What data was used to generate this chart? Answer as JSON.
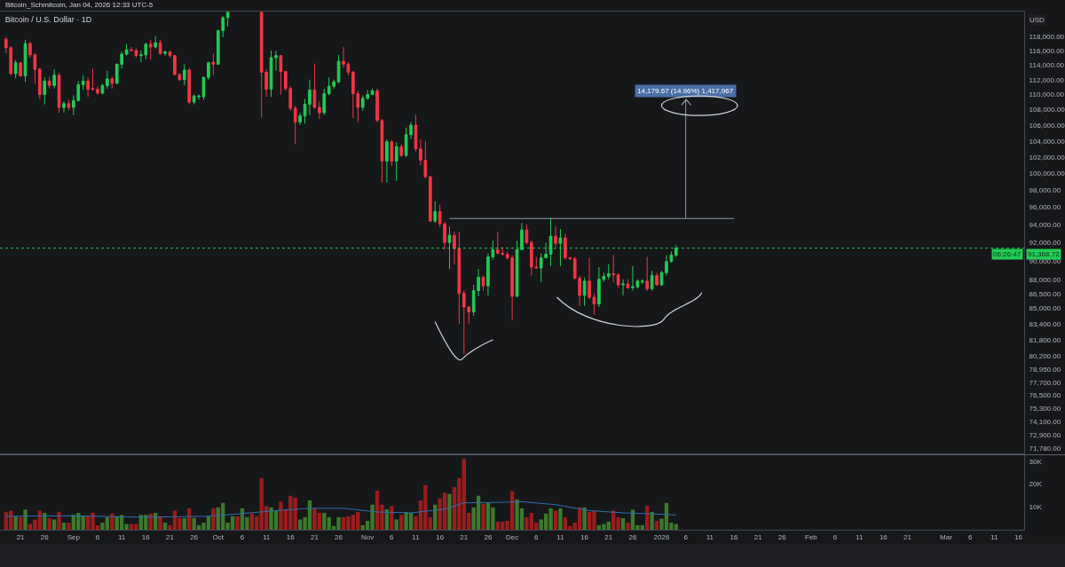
{
  "chart_data": [
    {
      "type": "candlestick",
      "title": "Bitcoin / U.S. Dollar · 1D",
      "ylabel": "USD",
      "log": "y",
      "tick_labels": "y",
      "annotations": [
        "Bitcoin_Schmitcoin, Jan 04, 2026 12:33 UTC-5",
        "06:26:47",
        {
          "text": "14,179.67 (14.96%) 1,417,967",
          "x": "2026-01-06",
          "y": 109400
        }
      ],
      "x": [
        "2025-08-18",
        "2025-08-19",
        "2025-08-20",
        "2025-08-21",
        "2025-08-22",
        "2025-08-23",
        "2025-08-24",
        "2025-08-25",
        "2025-08-26",
        "2025-08-27",
        "2025-08-28",
        "2025-08-29",
        "2025-08-30",
        "2025-08-31",
        "2025-09-01",
        "2025-09-02",
        "2025-09-03",
        "2025-09-04",
        "2025-09-05",
        "2025-09-06",
        "2025-09-07",
        "2025-09-08",
        "2025-09-09",
        "2025-09-10",
        "2025-09-11",
        "2025-09-12",
        "2025-09-13",
        "2025-09-14",
        "2025-09-15",
        "2025-09-16",
        "2025-09-17",
        "2025-09-18",
        "2025-09-19",
        "2025-09-20",
        "2025-09-21",
        "2025-09-22",
        "2025-09-23",
        "2025-09-24",
        "2025-09-25",
        "2025-09-26",
        "2025-09-27",
        "2025-09-28",
        "2025-09-29",
        "2025-09-30",
        "2025-10-01",
        "2025-10-02",
        "2025-10-03",
        "2025-10-10",
        "2025-10-11",
        "2025-10-12",
        "2025-10-13",
        "2025-10-14",
        "2025-10-15",
        "2025-10-16",
        "2025-10-17",
        "2025-10-18",
        "2025-10-19",
        "2025-10-20",
        "2025-10-21",
        "2025-10-22",
        "2025-10-23",
        "2025-10-24",
        "2025-10-25",
        "2025-10-26",
        "2025-10-27",
        "2025-10-28",
        "2025-10-29",
        "2025-10-30",
        "2025-10-31",
        "2025-11-01",
        "2025-11-02",
        "2025-11-03",
        "2025-11-04",
        "2025-11-05",
        "2025-11-06",
        "2025-11-07",
        "2025-11-08",
        "2025-11-09",
        "2025-11-10",
        "2025-11-11",
        "2025-11-12",
        "2025-11-13",
        "2025-11-14",
        "2025-11-15",
        "2025-11-16",
        "2025-11-17",
        "2025-11-18",
        "2025-11-19",
        "2025-11-20",
        "2025-11-21",
        "2025-11-22",
        "2025-11-23",
        "2025-11-24",
        "2025-11-25",
        "2025-11-26",
        "2025-11-27",
        "2025-11-28",
        "2025-11-29",
        "2025-11-30",
        "2025-12-01",
        "2025-12-02",
        "2025-12-03",
        "2025-12-04",
        "2025-12-05",
        "2025-12-06",
        "2025-12-07",
        "2025-12-08",
        "2025-12-09",
        "2025-12-10",
        "2025-12-11",
        "2025-12-12",
        "2025-12-13",
        "2025-12-14",
        "2025-12-15",
        "2025-12-16",
        "2025-12-17",
        "2025-12-18",
        "2025-12-19",
        "2025-12-20",
        "2025-12-21",
        "2025-12-22",
        "2025-12-23",
        "2025-12-24",
        "2025-12-25",
        "2025-12-26",
        "2025-12-27",
        "2025-12-28",
        "2025-12-29",
        "2025-12-30",
        "2025-12-31",
        "2026-01-01",
        "2026-01-02",
        "2026-01-03",
        "2026-01-04"
      ],
      "ohlc": [
        [
          117600,
          117900,
          115600,
          116400
        ],
        [
          116400,
          116600,
          112600,
          112800
        ],
        [
          112800,
          114700,
          112200,
          114300
        ],
        [
          114300,
          114400,
          112400,
          112500
        ],
        [
          112500,
          117500,
          111700,
          117000
        ],
        [
          117000,
          117300,
          115000,
          115400
        ],
        [
          115400,
          115600,
          111400,
          113400
        ],
        [
          113400,
          113600,
          109400,
          110000
        ],
        [
          110000,
          112300,
          108700,
          111800
        ],
        [
          111800,
          112400,
          110800,
          111200
        ],
        [
          111200,
          113400,
          110800,
          112600
        ],
        [
          112600,
          112900,
          107600,
          108300
        ],
        [
          108300,
          109100,
          107600,
          108800
        ],
        [
          108800,
          109300,
          107900,
          108300
        ],
        [
          108300,
          109900,
          107300,
          109200
        ],
        [
          109200,
          111800,
          109100,
          111300
        ],
        [
          111300,
          112600,
          110600,
          111800
        ],
        [
          111800,
          112300,
          109700,
          110700
        ],
        [
          110800,
          113500,
          110500,
          110700
        ],
        [
          110700,
          111100,
          110000,
          110200
        ],
        [
          110200,
          111400,
          110000,
          111200
        ],
        [
          111200,
          113200,
          110800,
          112100
        ],
        [
          112100,
          112400,
          110800,
          111500
        ],
        [
          111500,
          114200,
          111400,
          114100
        ],
        [
          114100,
          115900,
          113500,
          115500
        ],
        [
          115500,
          116900,
          115300,
          116100
        ],
        [
          116100,
          116500,
          115900,
          116000
        ],
        [
          116000,
          116300,
          115000,
          115300
        ],
        [
          115300,
          116000,
          114400,
          115400
        ],
        [
          115400,
          117100,
          114800,
          116900
        ],
        [
          116900,
          117500,
          114700,
          116500
        ],
        [
          116500,
          118000,
          116300,
          117100
        ],
        [
          117100,
          117500,
          115400,
          115600
        ],
        [
          115600,
          116000,
          115300,
          115800
        ],
        [
          115800,
          116000,
          115000,
          115300
        ],
        [
          115300,
          115400,
          112600,
          112700
        ],
        [
          112700,
          112900,
          111800,
          112000
        ],
        [
          112000,
          114100,
          111200,
          113300
        ],
        [
          113300,
          113600,
          108700,
          109000
        ],
        [
          109000,
          110000,
          108700,
          109800
        ],
        [
          109700,
          110000,
          109300,
          109800
        ],
        [
          109700,
          112400,
          109300,
          112300
        ],
        [
          112300,
          114500,
          112000,
          114300
        ],
        [
          114400,
          115600,
          112600,
          114100
        ],
        [
          114100,
          119000,
          114000,
          118800
        ],
        [
          118800,
          120900,
          117900,
          120700
        ],
        [
          120700,
          121560,
          119400,
          121500
        ],
        [
          121500,
          121560,
          107000,
          113000
        ],
        [
          113000,
          113400,
          109700,
          110700
        ],
        [
          110700,
          116000,
          109700,
          115000
        ],
        [
          115000,
          116000,
          113200,
          115300
        ],
        [
          115300,
          115400,
          110000,
          113100
        ],
        [
          113100,
          113200,
          110500,
          110800
        ],
        [
          110800,
          111100,
          107900,
          108200
        ],
        [
          108200,
          108500,
          103600,
          106400
        ],
        [
          106400,
          107600,
          106000,
          107200
        ],
        [
          107200,
          109400,
          106200,
          108700
        ],
        [
          108700,
          112000,
          107300,
          110600
        ],
        [
          110600,
          114200,
          108100,
          108300
        ],
        [
          108300,
          109100,
          106800,
          107600
        ],
        [
          107600,
          110800,
          107300,
          110100
        ],
        [
          110100,
          112300,
          109900,
          111100
        ],
        [
          111100,
          112000,
          110800,
          111700
        ],
        [
          111700,
          115400,
          111500,
          114500
        ],
        [
          114500,
          116500,
          113600,
          114100
        ],
        [
          114100,
          114400,
          112600,
          113000
        ],
        [
          113000,
          113200,
          106900,
          110100
        ],
        [
          110100,
          110500,
          106400,
          108300
        ],
        [
          108300,
          109900,
          107900,
          109500
        ],
        [
          109500,
          110600,
          109300,
          110000
        ],
        [
          110000,
          110800,
          109900,
          110500
        ],
        [
          110500,
          110800,
          106400,
          106600
        ],
        [
          106600,
          106800,
          98900,
          101500
        ],
        [
          101500,
          104200,
          98900,
          103900
        ],
        [
          103900,
          104100,
          100900,
          101500
        ],
        [
          101500,
          103800,
          99100,
          103300
        ],
        [
          103300,
          103600,
          102000,
          102200
        ],
        [
          102200,
          105700,
          102000,
          104800
        ],
        [
          104800,
          106400,
          104200,
          106000
        ],
        [
          106000,
          107300,
          102700,
          103000
        ],
        [
          103000,
          104200,
          101000,
          101600
        ],
        [
          101600,
          104000,
          99400,
          99600
        ],
        [
          99600,
          99700,
          94300,
          94400
        ],
        [
          94400,
          96700,
          94200,
          95500
        ],
        [
          95500,
          96300,
          93700,
          94100
        ],
        [
          94100,
          94300,
          91200,
          92000
        ],
        [
          92000,
          93800,
          89100,
          92800
        ],
        [
          92800,
          93200,
          89600,
          91300
        ],
        [
          91300,
          93200,
          83400,
          86500
        ],
        [
          86500,
          86800,
          80400,
          85100
        ],
        [
          85100,
          85200,
          83400,
          84600
        ],
        [
          84600,
          87400,
          84200,
          86800
        ],
        [
          86800,
          89100,
          86200,
          88200
        ],
        [
          88200,
          88400,
          86800,
          87300
        ],
        [
          87300,
          90800,
          86300,
          90400
        ],
        [
          90400,
          92200,
          90100,
          91200
        ],
        [
          91200,
          93200,
          90700,
          90800
        ],
        [
          90800,
          91500,
          90600,
          90700
        ],
        [
          90700,
          91000,
          90100,
          90300
        ],
        [
          90300,
          90600,
          83800,
          86200
        ],
        [
          86200,
          92200,
          86100,
          91200
        ],
        [
          91200,
          94200,
          91200,
          93400
        ],
        [
          93400,
          94000,
          91800,
          92000
        ],
        [
          92000,
          92200,
          88400,
          89300
        ],
        [
          89300,
          90400,
          89100,
          89200
        ],
        [
          89200,
          90800,
          87700,
          90300
        ],
        [
          90300,
          92000,
          90300,
          90700
        ],
        [
          90700,
          94800,
          89400,
          92700
        ],
        [
          92700,
          93800,
          91500,
          91900
        ],
        [
          91900,
          93500,
          89400,
          92500
        ],
        [
          92500,
          93000,
          90100,
          90300
        ],
        [
          90300,
          90400,
          90100,
          90200
        ],
        [
          90200,
          90400,
          88000,
          88100
        ],
        [
          88100,
          88400,
          85200,
          86300
        ],
        [
          86300,
          88200,
          85200,
          87800
        ],
        [
          87800,
          90300,
          85900,
          86100
        ],
        [
          86100,
          86500,
          84300,
          85400
        ],
        [
          85400,
          89300,
          85100,
          88000
        ],
        [
          88000,
          88700,
          87700,
          88300
        ],
        [
          88300,
          89600,
          88000,
          88600
        ],
        [
          88600,
          90600,
          87700,
          88500
        ],
        [
          88500,
          88600,
          87100,
          87400
        ],
        [
          87400,
          88000,
          86300,
          87500
        ],
        [
          87500,
          88000,
          87000,
          87100
        ],
        [
          87100,
          89400,
          86800,
          87200
        ],
        [
          87200,
          88000,
          87000,
          87800
        ],
        [
          87700,
          88000,
          87500,
          87800
        ],
        [
          87800,
          90400,
          86800,
          87000
        ],
        [
          87000,
          88900,
          86800,
          88400
        ],
        [
          88400,
          88700,
          87300,
          87400
        ],
        [
          87400,
          88900,
          87300,
          88700
        ],
        [
          88700,
          90600,
          88400,
          89900
        ],
        [
          89900,
          91000,
          89800,
          90600
        ],
        [
          90600,
          91700,
          90400,
          91368.72
        ]
      ],
      "colors": [
        "#f23645",
        "#f23645",
        "#22cc55",
        "#f23645",
        "#22cc55",
        "#f23645",
        "#f23645",
        "#f23645",
        "#22cc55",
        "#f23645",
        "#22cc55",
        "#f23645",
        "#22cc55",
        "#f23645",
        "#22cc55",
        "#22cc55",
        "#22cc55",
        "#f23645",
        "#f23645",
        "#f23645",
        "#22cc55",
        "#22cc55",
        "#f23645",
        "#22cc55",
        "#22cc55",
        "#22cc55",
        "#f23645",
        "#f23645",
        "#22cc55",
        "#22cc55",
        "#f23645",
        "#22cc55",
        "#f23645",
        "#22cc55",
        "#f23645",
        "#f23645",
        "#f23645",
        "#22cc55",
        "#f23645",
        "#22cc55",
        "#22cc55",
        "#22cc55",
        "#22cc55",
        "#f23645",
        "#22cc55",
        "#22cc55",
        "#22cc55",
        "#f23645",
        "#f23645",
        "#22cc55",
        "#22cc55",
        "#f23645",
        "#f23645",
        "#f23645",
        "#f23645",
        "#22cc55",
        "#22cc55",
        "#22cc55",
        "#f23645",
        "#f23645",
        "#22cc55",
        "#22cc55",
        "#22cc55",
        "#22cc55",
        "#f23645",
        "#f23645",
        "#f23645",
        "#f23645",
        "#22cc55",
        "#22cc55",
        "#22cc55",
        "#f23645",
        "#f23645",
        "#22cc55",
        "#f23645",
        "#22cc55",
        "#f23645",
        "#22cc55",
        "#22cc55",
        "#f23645",
        "#f23645",
        "#f23645",
        "#f23645",
        "#22cc55",
        "#f23645",
        "#f23645",
        "#22cc55",
        "#f23645",
        "#f23645",
        "#f23645",
        "#f23645",
        "#22cc55",
        "#22cc55",
        "#f23645",
        "#22cc55",
        "#22cc55",
        "#f23645",
        "#f23645",
        "#f23645",
        "#f23645",
        "#22cc55",
        "#22cc55",
        "#f23645",
        "#f23645",
        "#f23645",
        "#22cc55",
        "#22cc55",
        "#22cc55",
        "#f23645",
        "#22cc55",
        "#f23645",
        "#f23645",
        "#f23645",
        "#f23645",
        "#22cc55",
        "#f23645",
        "#f23645",
        "#22cc55",
        "#22cc55",
        "#22cc55",
        "#f23645",
        "#f23645",
        "#22cc55",
        "#f23645",
        "#22cc55",
        "#22cc55",
        "#22cc55",
        "#f23645",
        "#22cc55",
        "#f23645",
        "#22cc55",
        "#22cc55",
        "#22cc55",
        "#22cc55"
      ],
      "series": [
        {
          "type": "line",
          "color": "#9598a1",
          "x": [
            "2025-11-18",
            "2026-01-16"
          ],
          "values": [
            94700,
            94700
          ]
        },
        {
          "type": "line",
          "color": "#9598a1",
          "x": [
            "2026-01-06",
            "2026-01-06"
          ],
          "values": [
            94700,
            109400
          ]
        }
      ],
      "ref_lines": [
        {
          "axis": "y",
          "value": 91368.72,
          "label": "91,368.72",
          "color": "#22cc55",
          "line_style": "dotted"
        }
      ],
      "xlim": [
        "2025-08-16T18:00",
        "2026-03-17T05:00"
      ],
      "ylim": [
        71300,
        121600
      ],
      "yticks": [
        {
          "value": 118000,
          "label": "118,000.00"
        },
        {
          "value": 116000,
          "label": "116,000.00"
        },
        {
          "value": 114000,
          "label": "114,000.00"
        },
        {
          "value": 112000,
          "label": "112,000.00"
        },
        {
          "value": 110000,
          "label": "110,000.00"
        },
        {
          "value": 108000,
          "label": "108,000.00"
        },
        {
          "value": 106000,
          "label": "106,000.00"
        },
        {
          "value": 104000,
          "label": "104,000.00"
        },
        {
          "value": 102000,
          "label": "102,000.00"
        },
        {
          "value": 100000,
          "label": "100,000.00"
        },
        {
          "value": 98000,
          "label": "98,000.00"
        },
        {
          "value": 96000,
          "label": "96,000.00"
        },
        {
          "value": 94000,
          "label": "94,000.00"
        },
        {
          "value": 92000,
          "label": "92,000.00"
        },
        {
          "value": 90000,
          "label": "90,000.00"
        },
        {
          "value": 88000,
          "label": "88,000.00"
        },
        {
          "value": 86500,
          "label": "86,500.00"
        },
        {
          "value": 85000,
          "label": "85,000.00"
        },
        {
          "value": 83400,
          "label": "83,400.00"
        },
        {
          "value": 81800,
          "label": "81,800.00"
        },
        {
          "value": 80200,
          "label": "80,200.00"
        },
        {
          "value": 78950,
          "label": "78,950.00"
        },
        {
          "value": 77700,
          "label": "77,700.00"
        },
        {
          "value": 76500,
          "label": "76,500.00"
        },
        {
          "value": 75300,
          "label": "75,300.00"
        },
        {
          "value": 74100,
          "label": "74,100.00"
        },
        {
          "value": 72900,
          "label": "72,900.00"
        },
        {
          "value": 71780,
          "label": "71,780.00"
        }
      ]
    },
    {
      "type": "bar",
      "x": [
        "2025-08-18",
        "2025-08-19",
        "2025-08-20",
        "2025-08-21",
        "2025-08-22",
        "2025-08-23",
        "2025-08-24",
        "2025-08-25",
        "2025-08-26",
        "2025-08-27",
        "2025-08-28",
        "2025-08-29",
        "2025-08-30",
        "2025-08-31",
        "2025-09-01",
        "2025-09-02",
        "2025-09-03",
        "2025-09-04",
        "2025-09-05",
        "2025-09-06",
        "2025-09-07",
        "2025-09-08",
        "2025-09-09",
        "2025-09-10",
        "2025-09-11",
        "2025-09-12",
        "2025-09-13",
        "2025-09-14",
        "2025-09-15",
        "2025-09-16",
        "2025-09-17",
        "2025-09-18",
        "2025-09-19",
        "2025-09-20",
        "2025-09-21",
        "2025-09-22",
        "2025-09-23",
        "2025-09-24",
        "2025-09-25",
        "2025-09-26",
        "2025-09-27",
        "2025-09-28",
        "2025-09-29",
        "2025-09-30",
        "2025-10-01",
        "2025-10-02",
        "2025-10-03",
        "2025-10-04",
        "2025-10-05",
        "2025-10-06",
        "2025-10-07",
        "2025-10-08",
        "2025-10-09",
        "2025-10-10",
        "2025-10-11",
        "2025-10-12",
        "2025-10-13",
        "2025-10-14",
        "2025-10-15",
        "2025-10-16",
        "2025-10-17",
        "2025-10-18",
        "2025-10-19",
        "2025-10-20",
        "2025-10-21",
        "2025-10-22",
        "2025-10-23",
        "2025-10-24",
        "2025-10-25",
        "2025-10-26",
        "2025-10-27",
        "2025-10-28",
        "2025-10-29",
        "2025-10-30",
        "2025-10-31",
        "2025-11-01",
        "2025-11-02",
        "2025-11-03",
        "2025-11-04",
        "2025-11-05",
        "2025-11-06",
        "2025-11-07",
        "2025-11-08",
        "2025-11-09",
        "2025-11-10",
        "2025-11-11",
        "2025-11-12",
        "2025-11-13",
        "2025-11-14",
        "2025-11-15",
        "2025-11-16",
        "2025-11-17",
        "2025-11-18",
        "2025-11-19",
        "2025-11-20",
        "2025-11-21",
        "2025-11-22",
        "2025-11-23",
        "2025-11-24",
        "2025-11-25",
        "2025-11-26",
        "2025-11-27",
        "2025-11-28",
        "2025-11-29",
        "2025-11-30",
        "2025-12-01",
        "2025-12-02",
        "2025-12-03",
        "2025-12-04",
        "2025-12-05",
        "2025-12-06",
        "2025-12-07",
        "2025-12-08",
        "2025-12-09",
        "2025-12-10",
        "2025-12-11",
        "2025-12-12",
        "2025-12-13",
        "2025-12-14",
        "2025-12-15",
        "2025-12-16",
        "2025-12-17",
        "2025-12-18",
        "2025-12-19",
        "2025-12-20",
        "2025-12-21",
        "2025-12-22",
        "2025-12-23",
        "2025-12-24",
        "2025-12-25",
        "2025-12-26",
        "2025-12-27",
        "2025-12-28",
        "2025-12-29",
        "2025-12-30",
        "2025-12-31",
        "2026-01-01",
        "2026-01-02",
        "2026-01-03",
        "2026-01-04"
      ],
      "series": [
        {
          "type": "bar",
          "values": [
            7800,
            8400,
            5900,
            5500,
            8800,
            2500,
            4500,
            8400,
            7400,
            5100,
            4500,
            7800,
            3100,
            3100,
            6500,
            7400,
            5900,
            5900,
            7400,
            2000,
            3100,
            5500,
            7100,
            5900,
            6500,
            2500,
            2500,
            2500,
            6500,
            6500,
            7100,
            7400,
            5900,
            3100,
            2000,
            8400,
            5100,
            5100,
            9400,
            5100,
            2000,
            3100,
            5900,
            9400,
            9800,
            11800,
            3100,
            5900,
            5900,
            9400,
            5500,
            7100,
            5900,
            22700,
            10400,
            9800,
            8400,
            12300,
            9000,
            14900,
            14100,
            4500,
            5500,
            12900,
            9400,
            7400,
            7400,
            5500,
            1600,
            5500,
            5500,
            5900,
            6500,
            7800,
            2000,
            3900,
            11000,
            17200,
            11000,
            9000,
            10400,
            4500,
            6500,
            7800,
            7400,
            5900,
            12900,
            19600,
            5500,
            11000,
            13700,
            16300,
            15700,
            18800,
            22700,
            31000,
            7400,
            9800,
            14900,
            11400,
            11800,
            9800,
            3500,
            3500,
            3900,
            16900,
            13300,
            9400,
            5500,
            7400,
            3100,
            4500,
            7100,
            9400,
            8400,
            9400,
            5500,
            1600,
            3100,
            9800,
            9800,
            7800,
            8200,
            2000,
            2500,
            3500,
            8400,
            5500,
            5100,
            3100,
            8800,
            2000,
            2000,
            10600,
            7800,
            3900,
            4900,
            11800,
            3100,
            2500
          ],
          "colors": [
            "#9b1c1c",
            "#9b1c1c",
            "#3c7a2b",
            "#9b1c1c",
            "#3c7a2b",
            "#9b1c1c",
            "#9b1c1c",
            "#9b1c1c",
            "#3c7a2b",
            "#9b1c1c",
            "#3c7a2b",
            "#9b1c1c",
            "#3c7a2b",
            "#9b1c1c",
            "#3c7a2b",
            "#3c7a2b",
            "#3c7a2b",
            "#9b1c1c",
            "#9b1c1c",
            "#9b1c1c",
            "#3c7a2b",
            "#3c7a2b",
            "#9b1c1c",
            "#3c7a2b",
            "#3c7a2b",
            "#3c7a2b",
            "#9b1c1c",
            "#9b1c1c",
            "#3c7a2b",
            "#3c7a2b",
            "#9b1c1c",
            "#3c7a2b",
            "#9b1c1c",
            "#3c7a2b",
            "#9b1c1c",
            "#9b1c1c",
            "#9b1c1c",
            "#3c7a2b",
            "#9b1c1c",
            "#3c7a2b",
            "#3c7a2b",
            "#3c7a2b",
            "#3c7a2b",
            "#9b1c1c",
            "#3c7a2b",
            "#3c7a2b",
            "#3c7a2b",
            "#3c7a2b",
            "#9b1c1c",
            "#3c7a2b",
            "#3c7a2b",
            "#9b1c1c",
            "#9b1c1c",
            "#9b1c1c",
            "#9b1c1c",
            "#3c7a2b",
            "#3c7a2b",
            "#9b1c1c",
            "#9b1c1c",
            "#9b1c1c",
            "#9b1c1c",
            "#3c7a2b",
            "#3c7a2b",
            "#3c7a2b",
            "#9b1c1c",
            "#9b1c1c",
            "#3c7a2b",
            "#3c7a2b",
            "#3c7a2b",
            "#3c7a2b",
            "#9b1c1c",
            "#9b1c1c",
            "#9b1c1c",
            "#9b1c1c",
            "#3c7a2b",
            "#3c7a2b",
            "#3c7a2b",
            "#9b1c1c",
            "#9b1c1c",
            "#3c7a2b",
            "#9b1c1c",
            "#3c7a2b",
            "#9b1c1c",
            "#3c7a2b",
            "#3c7a2b",
            "#9b1c1c",
            "#9b1c1c",
            "#9b1c1c",
            "#9b1c1c",
            "#3c7a2b",
            "#9b1c1c",
            "#9b1c1c",
            "#3c7a2b",
            "#9b1c1c",
            "#9b1c1c",
            "#9b1c1c",
            "#9b1c1c",
            "#3c7a2b",
            "#3c7a2b",
            "#9b1c1c",
            "#3c7a2b",
            "#3c7a2b",
            "#9b1c1c",
            "#9b1c1c",
            "#9b1c1c",
            "#9b1c1c",
            "#3c7a2b",
            "#3c7a2b",
            "#9b1c1c",
            "#9b1c1c",
            "#9b1c1c",
            "#3c7a2b",
            "#3c7a2b",
            "#3c7a2b",
            "#9b1c1c",
            "#3c7a2b",
            "#9b1c1c",
            "#9b1c1c",
            "#9b1c1c",
            "#9b1c1c",
            "#3c7a2b",
            "#9b1c1c",
            "#9b1c1c",
            "#3c7a2b",
            "#3c7a2b",
            "#3c7a2b",
            "#9b1c1c",
            "#9b1c1c",
            "#3c7a2b",
            "#9b1c1c",
            "#3c7a2b",
            "#3c7a2b",
            "#3c7a2b",
            "#9b1c1c",
            "#3c7a2b",
            "#9b1c1c",
            "#3c7a2b",
            "#3c7a2b",
            "#3c7a2b",
            "#3c7a2b"
          ]
        },
        {
          "type": "line",
          "color": "#2f6fb3",
          "x": [
            "2025-08-18",
            "2025-09-01",
            "2025-09-15",
            "2025-09-29",
            "2025-10-06",
            "2025-10-13",
            "2025-10-20",
            "2025-10-27",
            "2025-11-03",
            "2025-11-10",
            "2025-11-17",
            "2025-11-21",
            "2025-11-28",
            "2025-12-03",
            "2025-12-10",
            "2025-12-17",
            "2025-12-24",
            "2025-12-31",
            "2026-01-04"
          ],
          "values": [
            5900,
            6100,
            5500,
            5900,
            7100,
            8400,
            9400,
            9400,
            7800,
            7400,
            9000,
            11800,
            12000,
            12300,
            11000,
            8400,
            7400,
            6900,
            6500
          ]
        }
      ],
      "xlim": [
        "2025-08-16T18:00",
        "2026-03-17T05:00"
      ],
      "ylim": [
        0,
        32700
      ],
      "yticks": [
        {
          "value": 10000,
          "label": "10K"
        },
        {
          "value": 20000,
          "label": "20K"
        },
        {
          "value": 30000,
          "label": "30K"
        }
      ],
      "xticks": [
        {
          "value": "2025-08-21",
          "label": "21"
        },
        {
          "value": "2025-08-26",
          "label": "26"
        },
        {
          "value": "2025-09-01",
          "label": "Sep"
        },
        {
          "value": "2025-09-06",
          "label": "6"
        },
        {
          "value": "2025-09-11",
          "label": "11"
        },
        {
          "value": "2025-09-16",
          "label": "16"
        },
        {
          "value": "2025-09-21",
          "label": "21"
        },
        {
          "value": "2025-09-26",
          "label": "26"
        },
        {
          "value": "2025-10-01",
          "label": "Oct"
        },
        {
          "value": "2025-10-06",
          "label": "6"
        },
        {
          "value": "2025-10-11",
          "label": "11"
        },
        {
          "value": "2025-10-16",
          "label": "16"
        },
        {
          "value": "2025-10-21",
          "label": "21"
        },
        {
          "value": "2025-10-26",
          "label": "26"
        },
        {
          "value": "2025-11-01",
          "label": "Nov"
        },
        {
          "value": "2025-11-06",
          "label": "6"
        },
        {
          "value": "2025-11-11",
          "label": "11"
        },
        {
          "value": "2025-11-16",
          "label": "16"
        },
        {
          "value": "2025-11-21",
          "label": "21"
        },
        {
          "value": "2025-11-26",
          "label": "26"
        },
        {
          "value": "2025-12-01",
          "label": "Dec"
        },
        {
          "value": "2025-12-06",
          "label": "6"
        },
        {
          "value": "2025-12-11",
          "label": "11"
        },
        {
          "value": "2025-12-16",
          "label": "16"
        },
        {
          "value": "2025-12-21",
          "label": "21"
        },
        {
          "value": "2025-12-26",
          "label": "26"
        },
        {
          "value": "2026-01-01",
          "label": "2026"
        },
        {
          "value": "2026-01-06",
          "label": "6"
        },
        {
          "value": "2026-01-11",
          "label": "11"
        },
        {
          "value": "2026-01-16",
          "label": "16"
        },
        {
          "value": "2026-01-21",
          "label": "21"
        },
        {
          "value": "2026-01-26",
          "label": "26"
        },
        {
          "value": "2026-02-01",
          "label": "Feb"
        },
        {
          "value": "2026-02-06",
          "label": "6"
        },
        {
          "value": "2026-02-11",
          "label": "11"
        },
        {
          "value": "2026-02-16",
          "label": "16"
        },
        {
          "value": "2026-02-21",
          "label": "21"
        },
        {
          "value": "2026-03-01",
          "label": "Mar"
        },
        {
          "value": "2026-03-06",
          "label": "6"
        },
        {
          "value": "2026-03-11",
          "label": "11"
        },
        {
          "value": "2026-03-16",
          "label": "16"
        }
      ]
    }
  ]
}
